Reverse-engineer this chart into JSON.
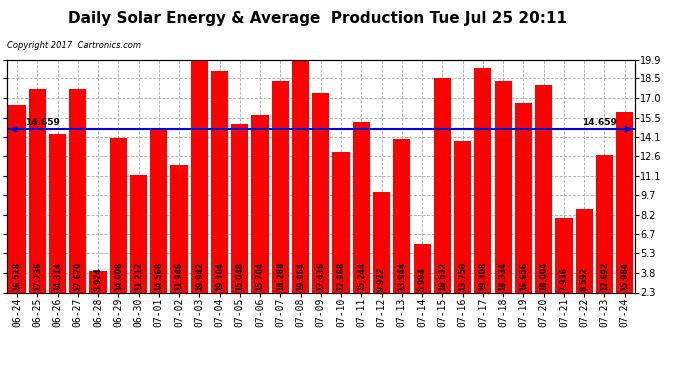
{
  "title": "Daily Solar Energy & Average  Production Tue Jul 25 20:11",
  "copyright": "Copyright 2017  Cartronics.com",
  "bar_color": "#ff0000",
  "avg_line_color": "#0000dd",
  "avg_value": 14.659,
  "avg_label": "14.659",
  "background_color": "#ffffff",
  "plot_bg_color": "#ffffff",
  "categories": [
    "06-24",
    "06-25",
    "06-26",
    "06-27",
    "06-28",
    "06-29",
    "06-30",
    "07-01",
    "07-02",
    "07-03",
    "07-04",
    "07-05",
    "07-06",
    "07-07",
    "07-08",
    "07-09",
    "07-10",
    "07-11",
    "07-12",
    "07-13",
    "07-14",
    "07-15",
    "07-16",
    "07-17",
    "07-18",
    "07-19",
    "07-20",
    "07-21",
    "07-22",
    "07-23",
    "07-24"
  ],
  "values": [
    16.518,
    17.736,
    14.314,
    17.67,
    3.924,
    14.008,
    11.212,
    14.568,
    11.946,
    19.942,
    19.104,
    15.048,
    15.704,
    18.288,
    19.964,
    17.416,
    12.968,
    15.244,
    9.922,
    13.944,
    5.994,
    18.532,
    13.75,
    19.308,
    18.334,
    16.656,
    18.004,
    7.936,
    8.592,
    12.692,
    15.984
  ],
  "ylim_min": 2.3,
  "ylim_max": 19.9,
  "yticks": [
    2.3,
    3.8,
    5.3,
    6.7,
    8.2,
    9.7,
    11.1,
    12.6,
    14.1,
    15.5,
    17.0,
    18.5,
    19.9
  ],
  "title_fontsize": 11,
  "tick_fontsize": 7,
  "label_fontsize": 5.5,
  "copyright_fontsize": 6,
  "legend_avg_color": "#0000ff",
  "legend_daily_color": "#ff0000",
  "bar_width": 0.85,
  "grid_color": "#aaaaaa",
  "border_color": "#000000"
}
